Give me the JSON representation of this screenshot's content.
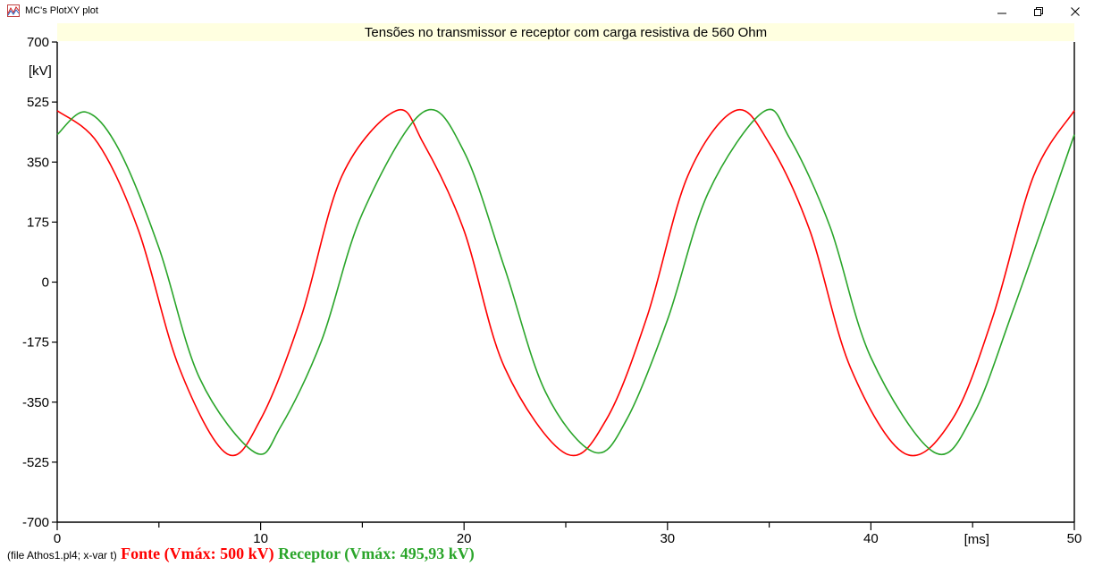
{
  "window": {
    "title": "MC's PlotXY plot",
    "minimize_icon": "minimize-icon",
    "restore_icon": "restore-icon",
    "close_icon": "close-icon"
  },
  "footer": {
    "file_info": "(file Athos1.pl4; x-var t)",
    "legend_fonte": "Fonte (Vmáx: 500 kV)",
    "legend_receptor": "Receptor (Vmáx: 495,93 kV)"
  },
  "colors": {
    "title_bg": "#ffffe0",
    "fonte": "#ff0000",
    "receptor": "#2aa52a",
    "axes": "#000000"
  },
  "chart_data": {
    "type": "line",
    "title": "Tensões no transmissor e receptor com carga resistiva de 560 Ohm",
    "xlabel": "[ms]",
    "ylabel": "[kV]",
    "xlim": [
      0,
      50
    ],
    "ylim": [
      -700,
      700
    ],
    "xticks": [
      "0",
      "10",
      "20",
      "30",
      "40",
      "50"
    ],
    "yticks": [
      "700",
      "525",
      "350",
      "175",
      "0",
      "-175",
      "-350",
      "-525",
      "-700"
    ],
    "grid": false,
    "legend_position": "bottom",
    "series": [
      {
        "name": "Fonte (Vmáx: 500 kV)",
        "color": "#ff0000",
        "x": [
          0,
          2,
          4,
          6,
          8.33,
          10,
          12,
          14,
          16.67,
          18,
          20,
          22,
          25,
          27,
          29,
          31,
          33.33,
          35,
          37,
          39,
          41.67,
          44,
          46,
          48,
          50
        ],
        "y": [
          500,
          405,
          150,
          -250,
          -500,
          -400,
          -100,
          310,
          500,
          405,
          150,
          -250,
          -500,
          -400,
          -100,
          310,
          500,
          405,
          150,
          -250,
          -500,
          -400,
          -100,
          310,
          500
        ]
      },
      {
        "name": "Receptor (Vmáx: 495,93 kV)",
        "color": "#2aa52a",
        "x": [
          0,
          1.4,
          3,
          5,
          7,
          9.7,
          11,
          13,
          15,
          18,
          20,
          22,
          24,
          26.4,
          28,
          30,
          32,
          34.7,
          36,
          38,
          40,
          43.1,
          45,
          47,
          50
        ],
        "y": [
          430,
          496,
          390,
          100,
          -280,
          -496,
          -420,
          -170,
          200,
          496,
          380,
          40,
          -320,
          -496,
          -400,
          -110,
          260,
          496,
          420,
          160,
          -220,
          -496,
          -390,
          -80,
          430
        ]
      }
    ]
  }
}
